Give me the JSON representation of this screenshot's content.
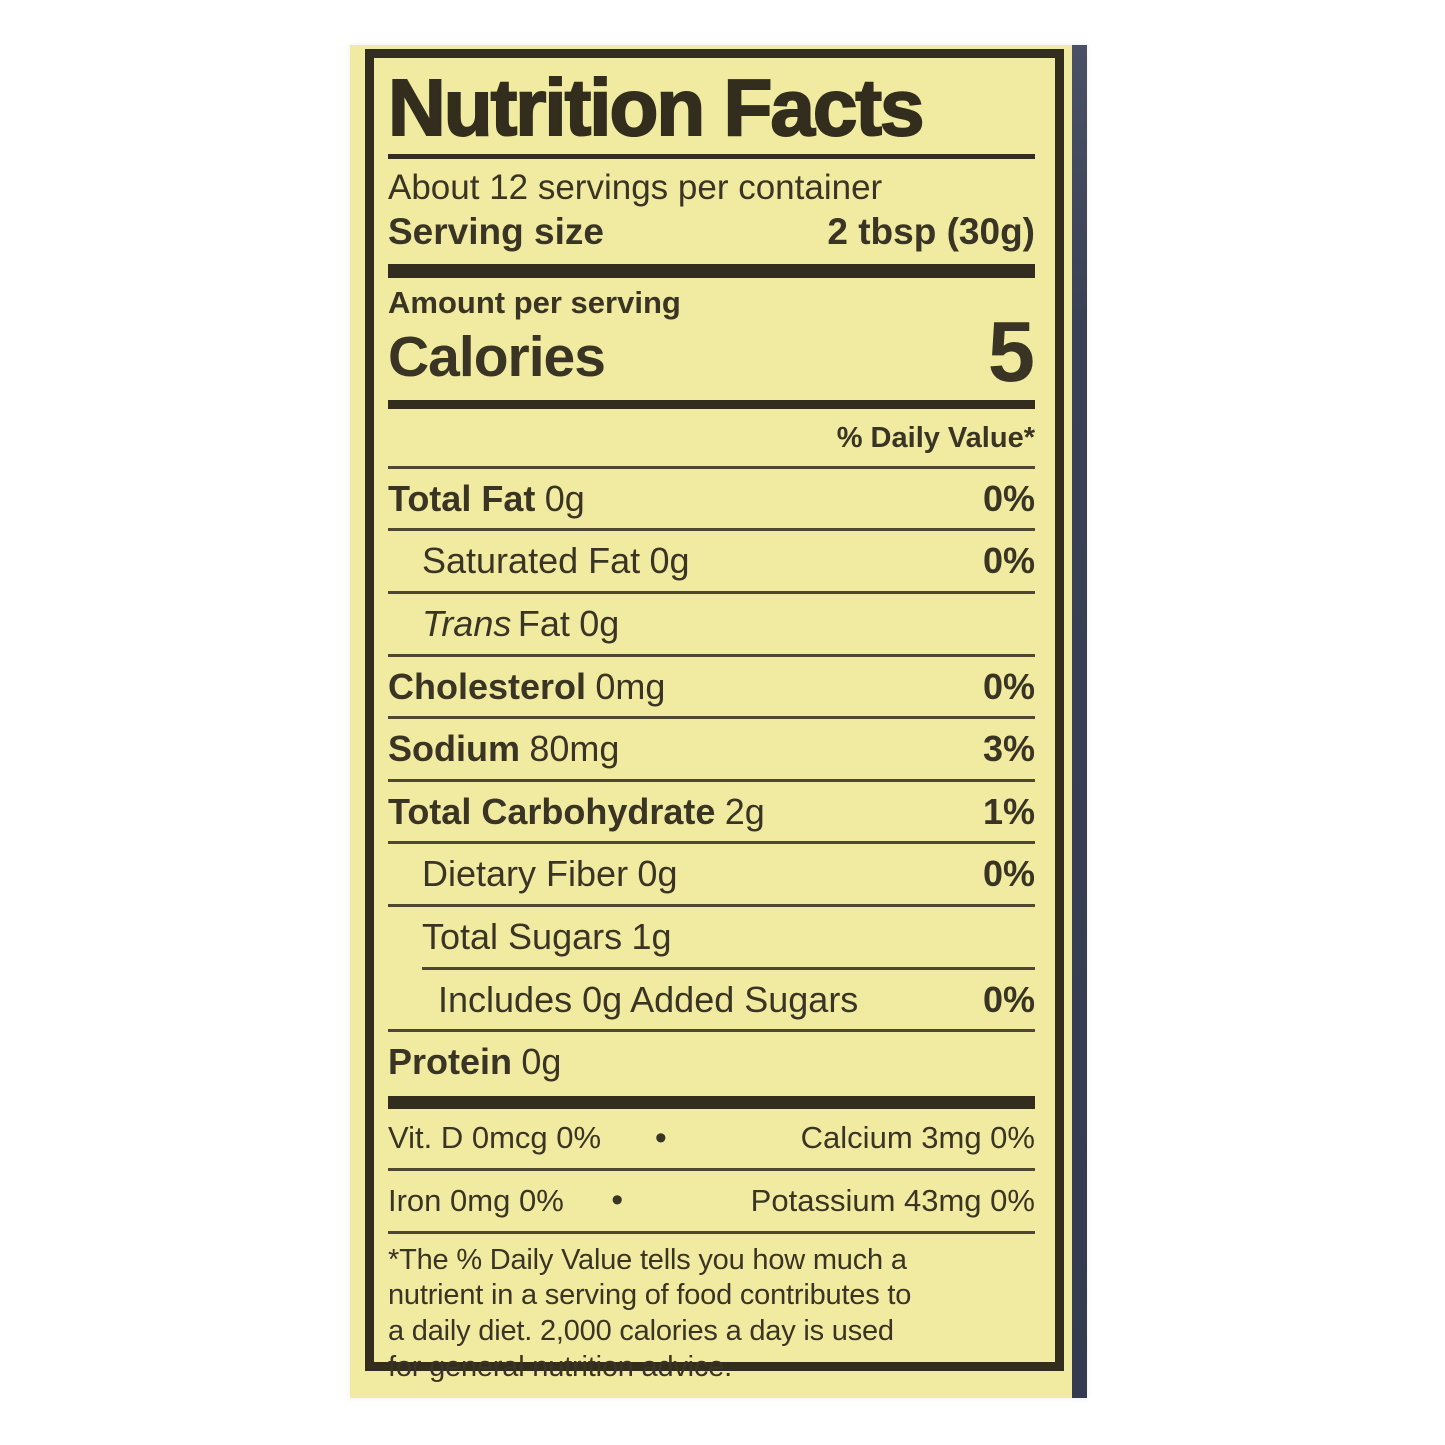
{
  "colors": {
    "label_bg": "#f1eba1",
    "ink": "#3a3424",
    "ink_dark": "#332d1e",
    "rule": "#4e4732",
    "edge_strip": "#3c4357",
    "page_bg": "#ffffff"
  },
  "label": {
    "title": "Nutrition Facts",
    "servings_per_container": "About 12 servings per container",
    "serving_size": {
      "label": "Serving size",
      "value": "2 tbsp (30g)"
    },
    "amount_per_serving": "Amount per serving",
    "calories": {
      "label": "Calories",
      "value": "5"
    },
    "daily_value_header": "% Daily Value*",
    "nutrients": [
      {
        "name": "Total Fat",
        "amount": "0g",
        "dv": "0%"
      },
      {
        "name": "Saturated Fat",
        "amount": "0g",
        "dv": "0%"
      },
      {
        "name_italic": "Trans",
        "name_rest": "Fat",
        "amount": "0g",
        "dv": ""
      },
      {
        "name": "Cholesterol",
        "amount": "0mg",
        "dv": "0%"
      },
      {
        "name": "Sodium",
        "amount": "80mg",
        "dv": "3%"
      },
      {
        "name": "Total Carbohydrate",
        "amount": "2g",
        "dv": "1%"
      },
      {
        "name": "Dietary Fiber",
        "amount": "0g",
        "dv": "0%"
      },
      {
        "name": "Total Sugars",
        "amount": "1g",
        "dv": ""
      },
      {
        "name": "Includes 0g Added Sugars",
        "amount": "",
        "dv": "0%"
      },
      {
        "name": "Protein",
        "amount": "0g",
        "dv": ""
      }
    ],
    "micronutrients": {
      "bullet": "•",
      "rows": [
        {
          "left": "Vit. D 0mcg 0%",
          "right": "Calcium 3mg 0%"
        },
        {
          "left": "Iron 0mg 0%",
          "right": "Potassium 43mg 0%"
        }
      ]
    },
    "footnote_lines": [
      "*The % Daily Value tells you how much a",
      "nutrient in a serving of food contributes to",
      "a daily diet. 2,000 calories a day is used",
      "for general nutrition advice."
    ]
  }
}
